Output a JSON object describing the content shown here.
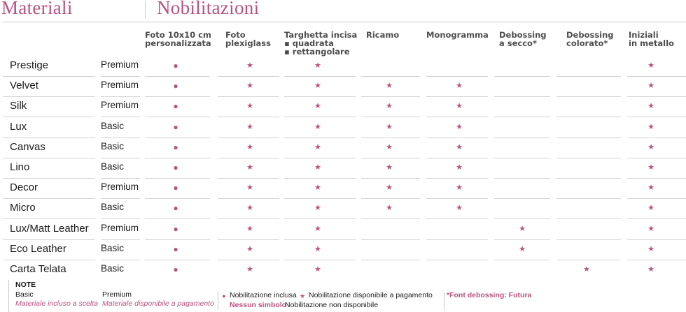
{
  "header": {
    "materials_title": "Materiali",
    "finishes_title": "Nobilitazioni"
  },
  "columns": [
    {
      "lines": [
        "Foto 10x10 cm",
        "personalizzata"
      ]
    },
    {
      "lines": [
        "Foto",
        "plexiglass"
      ]
    },
    {
      "lines": [
        "Targhetta incisa",
        "▪ quadrata",
        "▪ rettangolare"
      ]
    },
    {
      "lines": [
        "Ricamo"
      ]
    },
    {
      "lines": [
        "Monogramma"
      ]
    },
    {
      "lines": [
        "Debossing",
        "a secco*"
      ]
    },
    {
      "lines": [
        "Debossing",
        "colorato*"
      ]
    },
    {
      "lines": [
        "Iniziali",
        "in metallo"
      ]
    }
  ],
  "rows": [
    {
      "name": "Prestige",
      "level": "Premium",
      "marks": [
        "dot",
        "star",
        "star",
        "",
        "",
        "",
        "",
        "star"
      ]
    },
    {
      "name": "Velvet",
      "level": "Premium",
      "marks": [
        "dot",
        "star",
        "star",
        "star",
        "star",
        "",
        "",
        "star"
      ]
    },
    {
      "name": "Silk",
      "level": "Premium",
      "marks": [
        "dot",
        "star",
        "star",
        "star",
        "star",
        "",
        "",
        "star"
      ]
    },
    {
      "name": "Lux",
      "level": "Basic",
      "marks": [
        "dot",
        "star",
        "star",
        "star",
        "star",
        "",
        "",
        "star"
      ]
    },
    {
      "name": "Canvas",
      "level": "Basic",
      "marks": [
        "dot",
        "star",
        "star",
        "star",
        "star",
        "",
        "",
        "star"
      ]
    },
    {
      "name": "Lino",
      "level": "Basic",
      "marks": [
        "dot",
        "star",
        "star",
        "star",
        "star",
        "",
        "",
        "star"
      ]
    },
    {
      "name": "Decor",
      "level": "Premium",
      "marks": [
        "dot",
        "star",
        "star",
        "star",
        "star",
        "",
        "",
        "star"
      ]
    },
    {
      "name": "Micro",
      "level": "Basic",
      "marks": [
        "dot",
        "star",
        "star",
        "star",
        "star",
        "",
        "",
        "star"
      ]
    },
    {
      "name": "Lux/Matt Leather",
      "level": "Premium",
      "marks": [
        "dot",
        "star",
        "star",
        "",
        "",
        "star",
        "",
        "star"
      ]
    },
    {
      "name": "Eco Leather",
      "level": "Basic",
      "marks": [
        "dot",
        "star",
        "star",
        "",
        "",
        "star",
        "",
        "star"
      ]
    },
    {
      "name": "Carta Telata",
      "level": "Basic",
      "marks": [
        "dot",
        "star",
        "star",
        "",
        "",
        "",
        "star",
        "star"
      ]
    }
  ],
  "symbols": {
    "dot": "●",
    "star": "★"
  },
  "notes": {
    "title": "NOTE",
    "basic_label": "Basic",
    "basic_desc": "Materiale incluso a scelta",
    "premium_label": "Premium",
    "premium_desc": "Materiale disponibile a pagamento",
    "included_label": "Nobilitazione inclusa",
    "paid_label": "Nobilitazione disponibile a pagamento",
    "none_symbol_label": "Nessun simbolo",
    "none_desc": "Nobilitazione non disponibile",
    "font_note": "*Font debossing: Futura"
  },
  "colors": {
    "accent": "#b8527f",
    "rule": "#d3d3d3"
  }
}
